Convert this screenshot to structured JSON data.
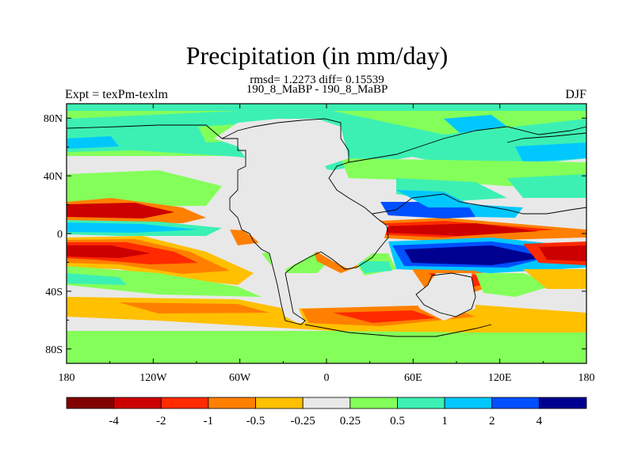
{
  "title": "Precipitation (in mm/day)",
  "stats_line": "rmsd= 1.2273 diff= 0.15539",
  "run_line": "190_8_MaBP - 190_8_MaBP",
  "left_label": "Expt = texPm-texlm",
  "right_label": "DJF",
  "colors": {
    "levels": [
      "#820000",
      "#cc0000",
      "#ff2a00",
      "#ff8000",
      "#ffc000",
      "#e8e8e8",
      "#84ff5a",
      "#3cf0b4",
      "#00c8ff",
      "#0050ff",
      "#000090"
    ]
  },
  "legend": {
    "labels": [
      "-4",
      "-2",
      "-1",
      "-0.5",
      "-0.25",
      "0.25",
      "0.5",
      "1",
      "2",
      "4"
    ]
  },
  "chart_data": {
    "type": "heatmap",
    "x_tick_labels": [
      "180",
      "120W",
      "60W",
      "0",
      "60E",
      "120E",
      "180"
    ],
    "x_ticks": [
      -180,
      -120,
      -60,
      0,
      60,
      120,
      180
    ],
    "y_tick_labels": [
      "80N",
      "40N",
      "0",
      "40S",
      "80S"
    ],
    "y_ticks": [
      80,
      40,
      0,
      -40,
      -80
    ],
    "xlim": [
      -180,
      180
    ],
    "ylim": [
      -90,
      90
    ],
    "contour_levels": [
      -4,
      -2,
      -1,
      -0.5,
      -0.25,
      0.25,
      0.5,
      1,
      2,
      4
    ]
  }
}
